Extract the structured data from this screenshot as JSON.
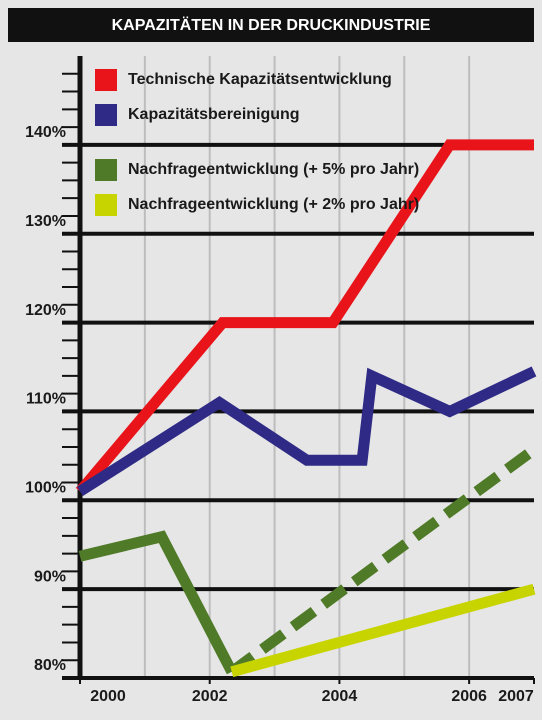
{
  "chart_data": {
    "type": "line",
    "title": "KAPAZITÄTEN IN DER DRUCKINDUSTRIE",
    "xlim": [
      2000,
      2007
    ],
    "xticks": [
      2000,
      2002,
      2004,
      2006,
      2007
    ],
    "ylim": [
      80,
      150
    ],
    "yticks": [
      {
        "value": 80,
        "label": "80%"
      },
      {
        "value": 90,
        "label": "90%"
      },
      {
        "value": 100,
        "label": "100%"
      },
      {
        "value": 110,
        "label": "110%"
      },
      {
        "value": 120,
        "label": "120%"
      },
      {
        "value": 130,
        "label": "130%"
      },
      {
        "value": 140,
        "label": "140%"
      }
    ],
    "grid": true,
    "legend": "upper left",
    "series": [
      {
        "name": "Technische Kapazitätsentwicklung",
        "color": "#e8141a",
        "x": [
          2000,
          2002.2,
          2003.9,
          2005.7,
          2007
        ],
        "values": [
          101,
          120,
          120,
          140,
          140
        ]
      },
      {
        "name": "Kapazitätsbereinigung",
        "color": "#2e2a86",
        "x": [
          2000,
          2002.15,
          2003.5,
          2004.35,
          2004.5,
          2005.7,
          2007
        ],
        "values": [
          101,
          111,
          104.5,
          104.5,
          114,
          110,
          114.5
        ]
      },
      {
        "name": "Nachfrageentwicklung (+ 5% pro Jahr)",
        "color": "#4f7a28",
        "x": [
          2000,
          2001.26,
          2002.34,
          2007
        ],
        "values": [
          93.7,
          95.9,
          80.7,
          105.7
        ],
        "dashed_after_x": 2002.34
      },
      {
        "name": "Nachfrageentwicklung (+ 2% pro Jahr)",
        "color": "#c8d400",
        "x": [
          2002.34,
          2007
        ],
        "values": [
          80.7,
          90
        ]
      }
    ]
  }
}
